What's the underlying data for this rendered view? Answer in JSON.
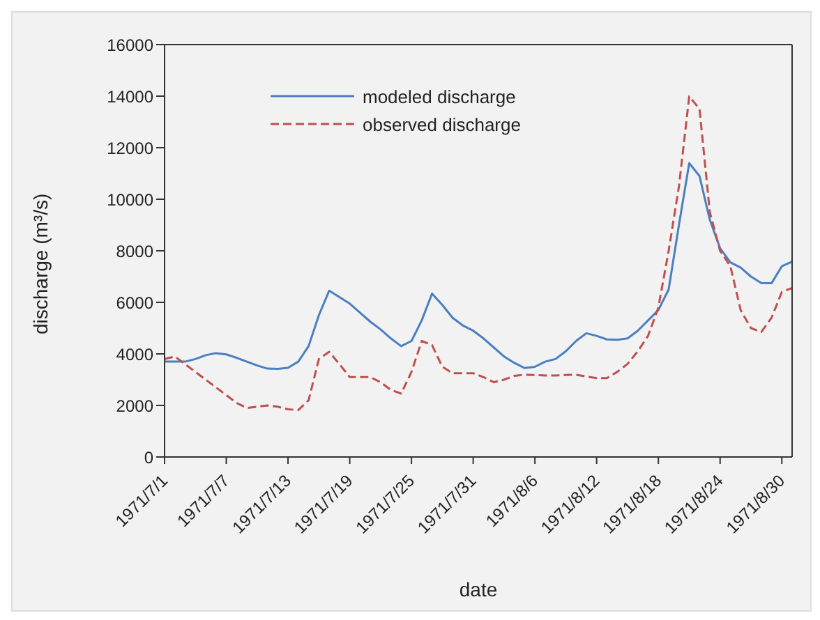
{
  "chart_data": {
    "type": "line",
    "xlabel": "date",
    "ylabel": "discharge (m³/s)",
    "categories": [
      "1971/7/1",
      null,
      null,
      null,
      null,
      null,
      "1971/7/7",
      null,
      null,
      null,
      null,
      null,
      "1971/7/13",
      null,
      null,
      null,
      null,
      null,
      "1971/7/19",
      null,
      null,
      null,
      null,
      null,
      "1971/7/25",
      null,
      null,
      null,
      null,
      null,
      "1971/7/31",
      null,
      null,
      null,
      null,
      null,
      "1971/8/6",
      null,
      null,
      null,
      null,
      null,
      "1971/8/12",
      null,
      null,
      null,
      null,
      null,
      "1971/8/18",
      null,
      null,
      null,
      null,
      null,
      "1971/8/24",
      null,
      null,
      null,
      null,
      null,
      "1971/8/30",
      null
    ],
    "series": [
      {
        "name": "modeled discharge",
        "color": "#4a7fc1",
        "line_style": "solid",
        "values": [
          3700,
          3700,
          3700,
          3800,
          3950,
          4030,
          3980,
          3850,
          3700,
          3550,
          3430,
          3420,
          3460,
          3700,
          4300,
          5500,
          6450,
          6200,
          5950,
          5600,
          5250,
          4950,
          4600,
          4300,
          4500,
          5300,
          6340,
          5900,
          5400,
          5100,
          4900,
          4600,
          4250,
          3900,
          3650,
          3450,
          3500,
          3700,
          3800,
          4100,
          4500,
          4800,
          4700,
          4560,
          4550,
          4600,
          4900,
          5300,
          5700,
          6500,
          9000,
          11400,
          10900,
          9200,
          8100,
          7550,
          7350,
          7000,
          6750,
          6740,
          7400,
          7580
        ]
      },
      {
        "name": "observed discharge",
        "color": "#c0504d",
        "line_style": "dashed",
        "values": [
          3800,
          3900,
          3600,
          3300,
          3000,
          2700,
          2400,
          2100,
          1900,
          1950,
          2000,
          1950,
          1850,
          1820,
          2200,
          3800,
          4080,
          3600,
          3100,
          3100,
          3100,
          2900,
          2600,
          2460,
          3300,
          4500,
          4340,
          3500,
          3250,
          3250,
          3250,
          3100,
          2900,
          3000,
          3150,
          3190,
          3180,
          3160,
          3160,
          3180,
          3190,
          3120,
          3060,
          3060,
          3300,
          3610,
          4100,
          4700,
          5800,
          8000,
          10500,
          13990,
          13500,
          9500,
          8000,
          7400,
          5700,
          5000,
          4850,
          5400,
          6400,
          6560
        ]
      }
    ],
    "ylim": [
      0,
      16000
    ],
    "yticks": [
      0,
      2000,
      4000,
      6000,
      8000,
      10000,
      12000,
      14000,
      16000
    ],
    "grid": false,
    "legend": "top left",
    "marker": "none"
  }
}
